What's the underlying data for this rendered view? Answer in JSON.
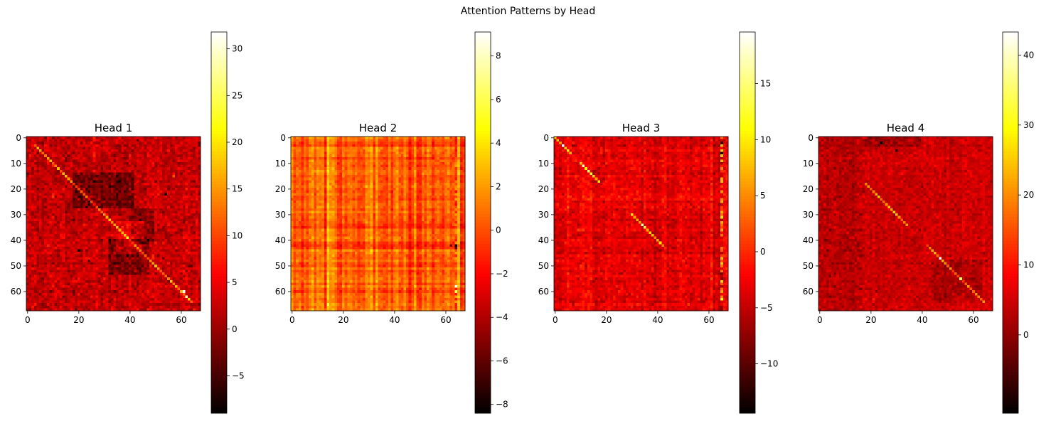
{
  "figure": {
    "title": "Attention Patterns by Head"
  },
  "colormap": "hot",
  "chart_data": [
    {
      "type": "heatmap",
      "title": "Head 1",
      "matrix_size": 68,
      "xticks": [
        0,
        20,
        40,
        60
      ],
      "yticks": [
        0,
        10,
        20,
        30,
        40,
        50,
        60
      ],
      "clim": [
        -9.0,
        31.8
      ],
      "colorbar_ticks": [
        -5,
        0,
        5,
        10,
        15,
        20,
        25,
        30
      ],
      "colorbar_labels": [
        "−5",
        "0",
        "5",
        "10",
        "15",
        "20",
        "25",
        "30"
      ],
      "pattern": {
        "background_mean": 2.5,
        "background_sd": 1.8,
        "column_spread": 0.5,
        "row_spread": 0.3,
        "diagonal_strength": 13.0,
        "diagonal_ranges": [
          [
            3,
            64
          ]
        ],
        "dark_blocks": [
          [
            14,
            28,
            18,
            42,
            -4.5
          ],
          [
            40,
            54,
            32,
            48,
            -4.0
          ],
          [
            28,
            42,
            40,
            50,
            -3.5
          ]
        ],
        "bright_blocks": [
          [
            33,
            46,
            35,
            46,
            4.0
          ]
        ],
        "peak_cells": [
          [
            60,
            61,
            31.8
          ],
          [
            62,
            62,
            28.0
          ],
          [
            4,
            4,
            17.0
          ],
          [
            50,
            50,
            18.0
          ]
        ],
        "min_cells": [
          [
            44,
            20,
            -9.0
          ],
          [
            22,
            54,
            -8.5
          ]
        ]
      }
    },
    {
      "type": "heatmap",
      "title": "Head 2",
      "matrix_size": 68,
      "xticks": [
        0,
        20,
        40,
        60
      ],
      "yticks": [
        0,
        10,
        20,
        30,
        40,
        50,
        60
      ],
      "clim": [
        -8.4,
        9.1
      ],
      "colorbar_ticks": [
        -8,
        -6,
        -4,
        -2,
        0,
        2,
        4,
        6,
        8
      ],
      "colorbar_labels": [
        "−8",
        "−6",
        "−4",
        "−2",
        "0",
        "2",
        "4",
        "6",
        "8"
      ],
      "pattern": {
        "background_mean": 0.6,
        "background_sd": 0.45,
        "column_spread": 1.0,
        "row_spread": 0.4,
        "special_columns": [
          [
            64,
            -2.0,
            2.5
          ]
        ],
        "row_offsets": [
          [
            35,
            -0.8
          ],
          [
            36,
            -0.6
          ],
          [
            41,
            -1.2
          ],
          [
            42,
            -1.4
          ],
          [
            43,
            -1.0
          ],
          [
            49,
            -0.6
          ],
          [
            50,
            -0.7
          ],
          [
            65,
            0.6
          ],
          [
            66,
            0.8
          ],
          [
            67,
            0.9
          ]
        ],
        "peak_cells": [
          [
            58,
            64,
            9.1
          ],
          [
            60,
            64,
            6.0
          ]
        ],
        "min_cells": [
          [
            42,
            64,
            -8.4
          ],
          [
            43,
            64,
            -6.0
          ],
          [
            42,
            62,
            -5.0
          ]
        ]
      }
    },
    {
      "type": "heatmap",
      "title": "Head 3",
      "matrix_size": 68,
      "xticks": [
        0,
        20,
        40,
        60
      ],
      "yticks": [
        0,
        10,
        20,
        30,
        40,
        50,
        60
      ],
      "clim": [
        -14.4,
        19.6
      ],
      "colorbar_ticks": [
        -10,
        -5,
        0,
        5,
        10,
        15
      ],
      "colorbar_labels": [
        "−10",
        "−5",
        "0",
        "5",
        "10",
        "15"
      ],
      "pattern": {
        "background_mean": -3.0,
        "background_sd": 1.2,
        "column_spread": 1.0,
        "row_spread": 0.6,
        "diagonal_strength": 14.0,
        "diagonal_ranges": [
          [
            0,
            6
          ],
          [
            10,
            17
          ],
          [
            30,
            42
          ]
        ],
        "special_columns": [
          [
            65,
            -9.0,
            11.0
          ]
        ],
        "peak_cells": [
          [
            3,
            3,
            19.6
          ],
          [
            34,
            34,
            17.0
          ],
          [
            11,
            11,
            17.5
          ]
        ],
        "min_cells": [
          [
            6,
            65,
            -14.4
          ],
          [
            2,
            65,
            -12.0
          ]
        ]
      }
    },
    {
      "type": "heatmap",
      "title": "Head 4",
      "matrix_size": 68,
      "xticks": [
        0,
        20,
        40,
        60
      ],
      "yticks": [
        0,
        10,
        20,
        30,
        40,
        50,
        60
      ],
      "clim": [
        -11.2,
        43.3
      ],
      "colorbar_ticks": [
        0,
        10,
        20,
        30,
        40
      ],
      "colorbar_labels": [
        "0",
        "10",
        "20",
        "30",
        "40"
      ],
      "pattern": {
        "background_mean": 4.5,
        "background_sd": 1.6,
        "column_spread": 0.6,
        "row_spread": 0.3,
        "diagonal_strength": 18.0,
        "diagonal_ranges": [
          [
            18,
            34
          ],
          [
            42,
            64
          ]
        ],
        "dark_blocks": [
          [
            0,
            68,
            0,
            18,
            -1.5
          ],
          [
            0,
            4,
            18,
            40,
            -3.5
          ],
          [
            48,
            64,
            44,
            64,
            -2.5
          ]
        ],
        "peak_cells": [
          [
            47,
            47,
            43.3
          ],
          [
            55,
            55,
            34.0
          ],
          [
            19,
            19,
            22.0
          ]
        ],
        "min_cells": [
          [
            2,
            24,
            -11.2
          ],
          [
            5,
            30,
            -8.0
          ]
        ]
      }
    }
  ]
}
